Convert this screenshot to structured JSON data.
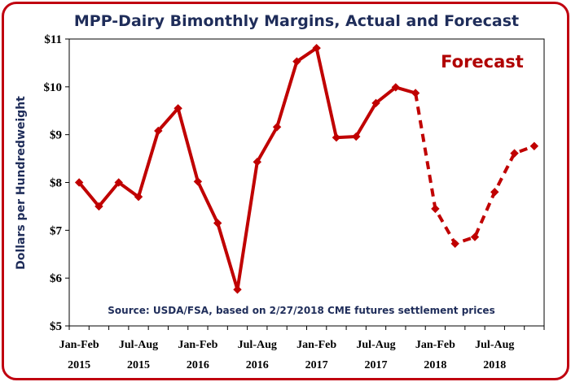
{
  "chart_data": {
    "type": "line",
    "title": "MPP-Dairy Bimonthly Margins, Actual and Forecast",
    "ylabel": "Dollars per Hundredweight",
    "xlabel": "",
    "ylim": [
      5,
      11
    ],
    "y_ticks": [
      "$5",
      "$6",
      "$7",
      "$8",
      "$9",
      "$10",
      "$11"
    ],
    "x_tick_labels": [
      [
        "Jan-Feb",
        "2015"
      ],
      [
        "Jul-Aug",
        "2015"
      ],
      [
        "Jan-Feb",
        "2016"
      ],
      [
        "Jul-Aug",
        "2016"
      ],
      [
        "Jan-Feb",
        "2017"
      ],
      [
        "Jul-Aug",
        "2017"
      ],
      [
        "Jan-Feb",
        "2018"
      ],
      [
        "Jul-Aug",
        "2018"
      ]
    ],
    "x": [
      "Jan-Feb 2015",
      "Mar-Apr 2015",
      "May-Jun 2015",
      "Jul-Aug 2015",
      "Sep-Oct 2015",
      "Nov-Dec 2015",
      "Jan-Feb 2016",
      "Mar-Apr 2016",
      "May-Jun 2016",
      "Jul-Aug 2016",
      "Sep-Oct 2016",
      "Nov-Dec 2016",
      "Jan-Feb 2017",
      "Mar-Apr 2017",
      "May-Jun 2017",
      "Jul-Aug 2017",
      "Sep-Oct 2017",
      "Nov-Dec 2017",
      "Jan-Feb 2018",
      "Mar-Apr 2018",
      "May-Jun 2018",
      "Jul-Aug 2018",
      "Sep-Oct 2018",
      "Nov-Dec 2018"
    ],
    "series": [
      {
        "name": "Actual",
        "style": "solid",
        "values": [
          8.0,
          7.5,
          8.0,
          7.7,
          9.08,
          9.55,
          8.02,
          7.15,
          5.76,
          8.43,
          9.16,
          10.53,
          10.81,
          8.94,
          8.96,
          9.66,
          9.99,
          9.87,
          null,
          null,
          null,
          null,
          null,
          null
        ]
      },
      {
        "name": "Forecast",
        "style": "dashed",
        "values": [
          null,
          null,
          null,
          null,
          null,
          null,
          null,
          null,
          null,
          null,
          null,
          null,
          null,
          null,
          null,
          null,
          null,
          9.87,
          7.45,
          6.72,
          6.86,
          7.8,
          8.61,
          8.76
        ]
      }
    ],
    "annotations": [
      "Forecast",
      "Source:  USDA/FSA, based on 2/27/2018 CME futures settlement prices"
    ],
    "line_color": "#c00000",
    "grid": false,
    "legend": "none"
  }
}
